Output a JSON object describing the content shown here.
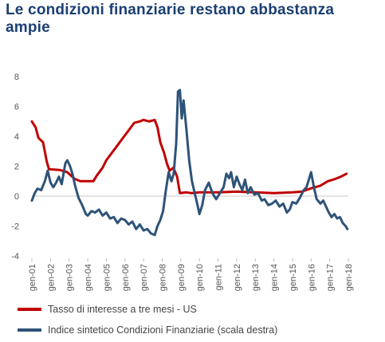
{
  "title": "Le condizioni finanziarie restano abbastanza ampie",
  "chart_data": {
    "type": "line",
    "x_labels": [
      "gen-01",
      "gen-02",
      "gen-03",
      "gen-04",
      "gen-05",
      "gen-06",
      "gen-07",
      "gen-08",
      "gen-09",
      "gen-10",
      "gen-11",
      "gen-12",
      "gen-13",
      "gen-14",
      "gen-15",
      "gen-16",
      "gen-17",
      "gen-18"
    ],
    "ylim": [
      -4,
      8
    ],
    "y_ticks": [
      8,
      6,
      4,
      2,
      0,
      -2,
      -4
    ],
    "grid": false,
    "legend_position": "bottom",
    "series": [
      {
        "name": "Tasso di interesse a tre mesi - US",
        "color": "#c00000",
        "points": [
          [
            2001.0,
            5.0
          ],
          [
            2001.2,
            4.6
          ],
          [
            2001.35,
            3.9
          ],
          [
            2001.6,
            3.6
          ],
          [
            2001.8,
            2.3
          ],
          [
            2001.92,
            1.8
          ],
          [
            2002.5,
            1.75
          ],
          [
            2002.9,
            1.6
          ],
          [
            2003.3,
            1.15
          ],
          [
            2003.6,
            1.0
          ],
          [
            2004.0,
            1.0
          ],
          [
            2004.3,
            1.0
          ],
          [
            2004.5,
            1.4
          ],
          [
            2004.8,
            1.9
          ],
          [
            2005.0,
            2.4
          ],
          [
            2005.3,
            2.9
          ],
          [
            2005.6,
            3.4
          ],
          [
            2005.9,
            3.9
          ],
          [
            2006.2,
            4.4
          ],
          [
            2006.5,
            4.9
          ],
          [
            2006.8,
            5.0
          ],
          [
            2007.0,
            5.1
          ],
          [
            2007.3,
            5.0
          ],
          [
            2007.6,
            5.1
          ],
          [
            2007.75,
            4.6
          ],
          [
            2007.9,
            3.6
          ],
          [
            2008.1,
            2.9
          ],
          [
            2008.25,
            2.2
          ],
          [
            2008.4,
            1.7
          ],
          [
            2008.6,
            1.9
          ],
          [
            2008.8,
            1.3
          ],
          [
            2008.95,
            0.2
          ],
          [
            2009.3,
            0.25
          ],
          [
            2009.6,
            0.2
          ],
          [
            2010.0,
            0.25
          ],
          [
            2011.0,
            0.25
          ],
          [
            2012.0,
            0.3
          ],
          [
            2013.0,
            0.25
          ],
          [
            2014.0,
            0.2
          ],
          [
            2015.0,
            0.25
          ],
          [
            2015.5,
            0.3
          ],
          [
            2015.95,
            0.5
          ],
          [
            2016.5,
            0.7
          ],
          [
            2016.9,
            1.0
          ],
          [
            2017.3,
            1.15
          ],
          [
            2017.6,
            1.3
          ],
          [
            2017.9,
            1.5
          ]
        ]
      },
      {
        "name": "Indice sintetico Condizioni Finanziarie (scala destra)",
        "color": "#2e5378",
        "points": [
          [
            2001.0,
            -0.3
          ],
          [
            2001.15,
            0.2
          ],
          [
            2001.3,
            0.5
          ],
          [
            2001.5,
            0.4
          ],
          [
            2001.7,
            1.0
          ],
          [
            2001.85,
            1.7
          ],
          [
            2002.0,
            0.9
          ],
          [
            2002.15,
            0.6
          ],
          [
            2002.3,
            0.9
          ],
          [
            2002.45,
            1.3
          ],
          [
            2002.6,
            0.8
          ],
          [
            2002.8,
            2.2
          ],
          [
            2002.9,
            2.4
          ],
          [
            2003.05,
            2.0
          ],
          [
            2003.2,
            1.4
          ],
          [
            2003.3,
            0.8
          ],
          [
            2003.5,
            -0.1
          ],
          [
            2003.7,
            -0.6
          ],
          [
            2003.9,
            -1.2
          ],
          [
            2004.0,
            -1.3
          ],
          [
            2004.2,
            -1.0
          ],
          [
            2004.4,
            -1.1
          ],
          [
            2004.6,
            -0.9
          ],
          [
            2004.8,
            -1.3
          ],
          [
            2005.0,
            -1.1
          ],
          [
            2005.2,
            -1.5
          ],
          [
            2005.4,
            -1.4
          ],
          [
            2005.6,
            -1.8
          ],
          [
            2005.8,
            -1.5
          ],
          [
            2006.0,
            -1.6
          ],
          [
            2006.2,
            -1.9
          ],
          [
            2006.4,
            -1.7
          ],
          [
            2006.6,
            -2.2
          ],
          [
            2006.8,
            -1.9
          ],
          [
            2007.0,
            -2.3
          ],
          [
            2007.2,
            -2.2
          ],
          [
            2007.4,
            -2.5
          ],
          [
            2007.6,
            -2.6
          ],
          [
            2007.75,
            -2.0
          ],
          [
            2007.9,
            -1.6
          ],
          [
            2008.05,
            -1.0
          ],
          [
            2008.2,
            0.4
          ],
          [
            2008.35,
            1.6
          ],
          [
            2008.5,
            1.0
          ],
          [
            2008.62,
            1.5
          ],
          [
            2008.75,
            3.5
          ],
          [
            2008.85,
            7.0
          ],
          [
            2008.95,
            7.1
          ],
          [
            2009.05,
            5.2
          ],
          [
            2009.15,
            6.4
          ],
          [
            2009.3,
            4.5
          ],
          [
            2009.45,
            2.4
          ],
          [
            2009.6,
            1.0
          ],
          [
            2009.75,
            0.2
          ],
          [
            2009.9,
            -0.6
          ],
          [
            2010.0,
            -1.2
          ],
          [
            2010.15,
            -0.6
          ],
          [
            2010.3,
            0.4
          ],
          [
            2010.5,
            0.9
          ],
          [
            2010.7,
            0.2
          ],
          [
            2010.9,
            -0.2
          ],
          [
            2011.1,
            0.2
          ],
          [
            2011.3,
            0.6
          ],
          [
            2011.45,
            1.5
          ],
          [
            2011.6,
            1.2
          ],
          [
            2011.7,
            1.6
          ],
          [
            2011.85,
            0.6
          ],
          [
            2012.0,
            1.3
          ],
          [
            2012.15,
            0.8
          ],
          [
            2012.3,
            0.4
          ],
          [
            2012.45,
            1.1
          ],
          [
            2012.6,
            0.2
          ],
          [
            2012.75,
            0.6
          ],
          [
            2012.95,
            0.1
          ],
          [
            2013.15,
            0.2
          ],
          [
            2013.35,
            -0.3
          ],
          [
            2013.5,
            -0.2
          ],
          [
            2013.7,
            -0.6
          ],
          [
            2013.9,
            -0.5
          ],
          [
            2014.1,
            -0.3
          ],
          [
            2014.3,
            -0.7
          ],
          [
            2014.5,
            -0.5
          ],
          [
            2014.7,
            -1.1
          ],
          [
            2014.85,
            -0.9
          ],
          [
            2015.0,
            -0.4
          ],
          [
            2015.2,
            -0.5
          ],
          [
            2015.4,
            -0.1
          ],
          [
            2015.6,
            0.4
          ],
          [
            2015.75,
            0.6
          ],
          [
            2015.9,
            1.2
          ],
          [
            2016.0,
            1.6
          ],
          [
            2016.15,
            0.6
          ],
          [
            2016.3,
            -0.2
          ],
          [
            2016.5,
            -0.5
          ],
          [
            2016.65,
            -0.3
          ],
          [
            2016.8,
            -0.7
          ],
          [
            2016.95,
            -1.1
          ],
          [
            2017.1,
            -1.4
          ],
          [
            2017.25,
            -1.2
          ],
          [
            2017.4,
            -1.5
          ],
          [
            2017.55,
            -1.4
          ],
          [
            2017.7,
            -1.8
          ],
          [
            2017.85,
            -2.0
          ],
          [
            2017.95,
            -2.2
          ]
        ]
      }
    ]
  }
}
